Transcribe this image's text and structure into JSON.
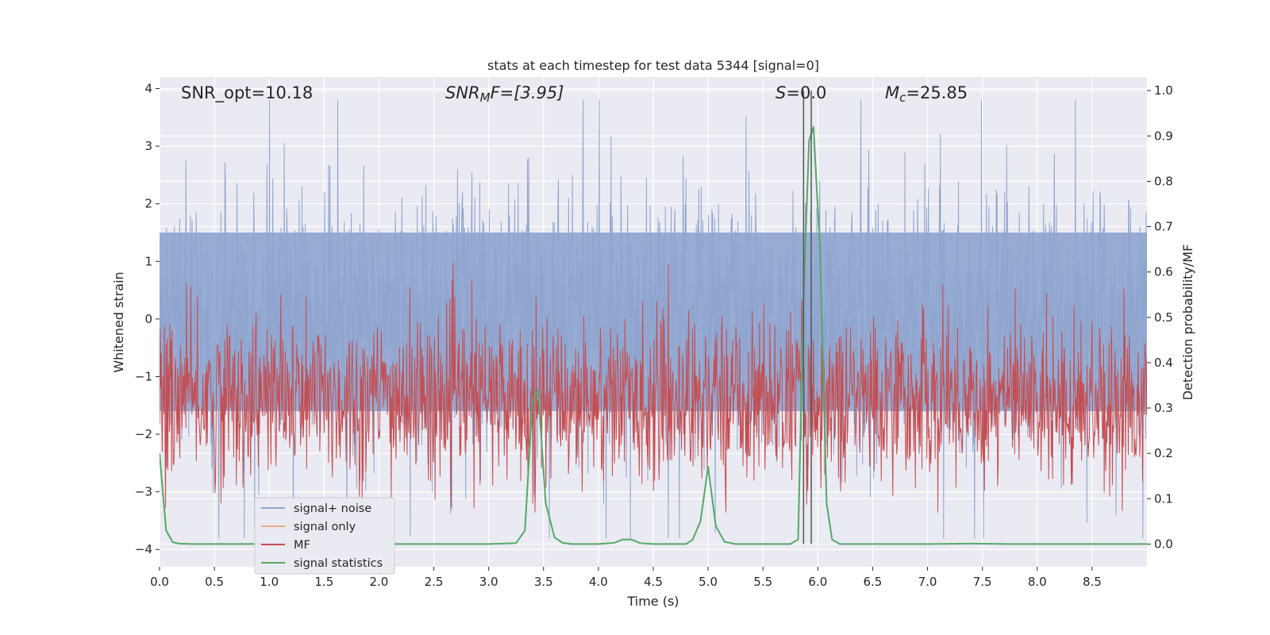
{
  "chart_data": {
    "type": "line",
    "title": "stats at each timestep for test data 5344 [signal=0]",
    "xlabel": "Time (s)",
    "ylabel_left": "Whitened strain",
    "ylabel_right": "Detection probability/MF",
    "xlim": [
      0.0,
      9.0
    ],
    "ylim_left": [
      -4.3,
      4.2
    ],
    "ylim_right": [
      -0.05,
      1.03
    ],
    "x_ticks": [
      "0.0",
      "0.5",
      "1.0",
      "1.5",
      "2.0",
      "2.5",
      "3.0",
      "3.5",
      "4.0",
      "4.5",
      "5.0",
      "5.5",
      "6.0",
      "6.5",
      "7.0",
      "7.5",
      "8.0",
      "8.5"
    ],
    "y_ticks_left": [
      "4",
      "3",
      "2",
      "1",
      "0",
      "−1",
      "−2",
      "−3",
      "−4"
    ],
    "y_ticks_right": [
      "1.0",
      "0.9",
      "0.8",
      "0.7",
      "0.6",
      "0.5",
      "0.4",
      "0.3",
      "0.2",
      "0.1",
      "0.0"
    ],
    "grid": true,
    "legend_position": "lower-left",
    "annotations": {
      "snr_opt": "SNR_opt=10.18",
      "snr_mf_main": "SNR",
      "snr_mf_sub": "M",
      "snr_mf_rest": "F=[3.95]",
      "s_main": "S",
      "s_rest": "=0.0",
      "mc_main": "M",
      "mc_sub": "c",
      "mc_rest": "=25.85"
    },
    "vertical_lines_x": [
      5.87,
      5.94
    ],
    "series": [
      {
        "name": "signal+ noise",
        "color": "#8fa5cf",
        "kind": "noise strain (approx. ±1.5 band, peaks to ±3.8)",
        "band": [
          -1.6,
          1.5
        ]
      },
      {
        "name": "signal only",
        "color": "#e8a88a",
        "values": []
      },
      {
        "name": "MF",
        "color": "#c44e52",
        "kind": "matched filter output (approx. 0.07–0.62 on right axis)",
        "band": [
          0.07,
          0.62
        ]
      },
      {
        "name": "signal statistics",
        "color": "#55a868",
        "x": [
          0.0,
          0.06,
          0.12,
          0.18,
          0.3,
          0.5,
          1.0,
          2.0,
          3.0,
          3.25,
          3.33,
          3.4,
          3.45,
          3.52,
          3.6,
          3.67,
          3.75,
          3.85,
          4.0,
          4.15,
          4.22,
          4.3,
          4.38,
          4.5,
          4.8,
          4.86,
          4.93,
          5.0,
          5.07,
          5.15,
          5.25,
          5.5,
          5.75,
          5.82,
          5.87,
          5.92,
          5.96,
          6.02,
          6.08,
          6.13,
          6.2,
          6.5,
          7.0,
          7.4,
          7.8,
          8.0,
          9.0
        ],
        "values": [
          0.2,
          0.03,
          0.004,
          0.001,
          0.0,
          0.0,
          0.0,
          0.0,
          0.0,
          0.002,
          0.03,
          0.32,
          0.34,
          0.09,
          0.015,
          0.003,
          0.0,
          0.0,
          0.0,
          0.003,
          0.01,
          0.01,
          0.002,
          0.0,
          0.0,
          0.01,
          0.05,
          0.17,
          0.04,
          0.005,
          0.0,
          0.0,
          0.0,
          0.01,
          0.55,
          0.89,
          0.92,
          0.65,
          0.09,
          0.01,
          0.0,
          0.0,
          0.0,
          0.001,
          0.0,
          0.0,
          0.0
        ]
      }
    ]
  }
}
